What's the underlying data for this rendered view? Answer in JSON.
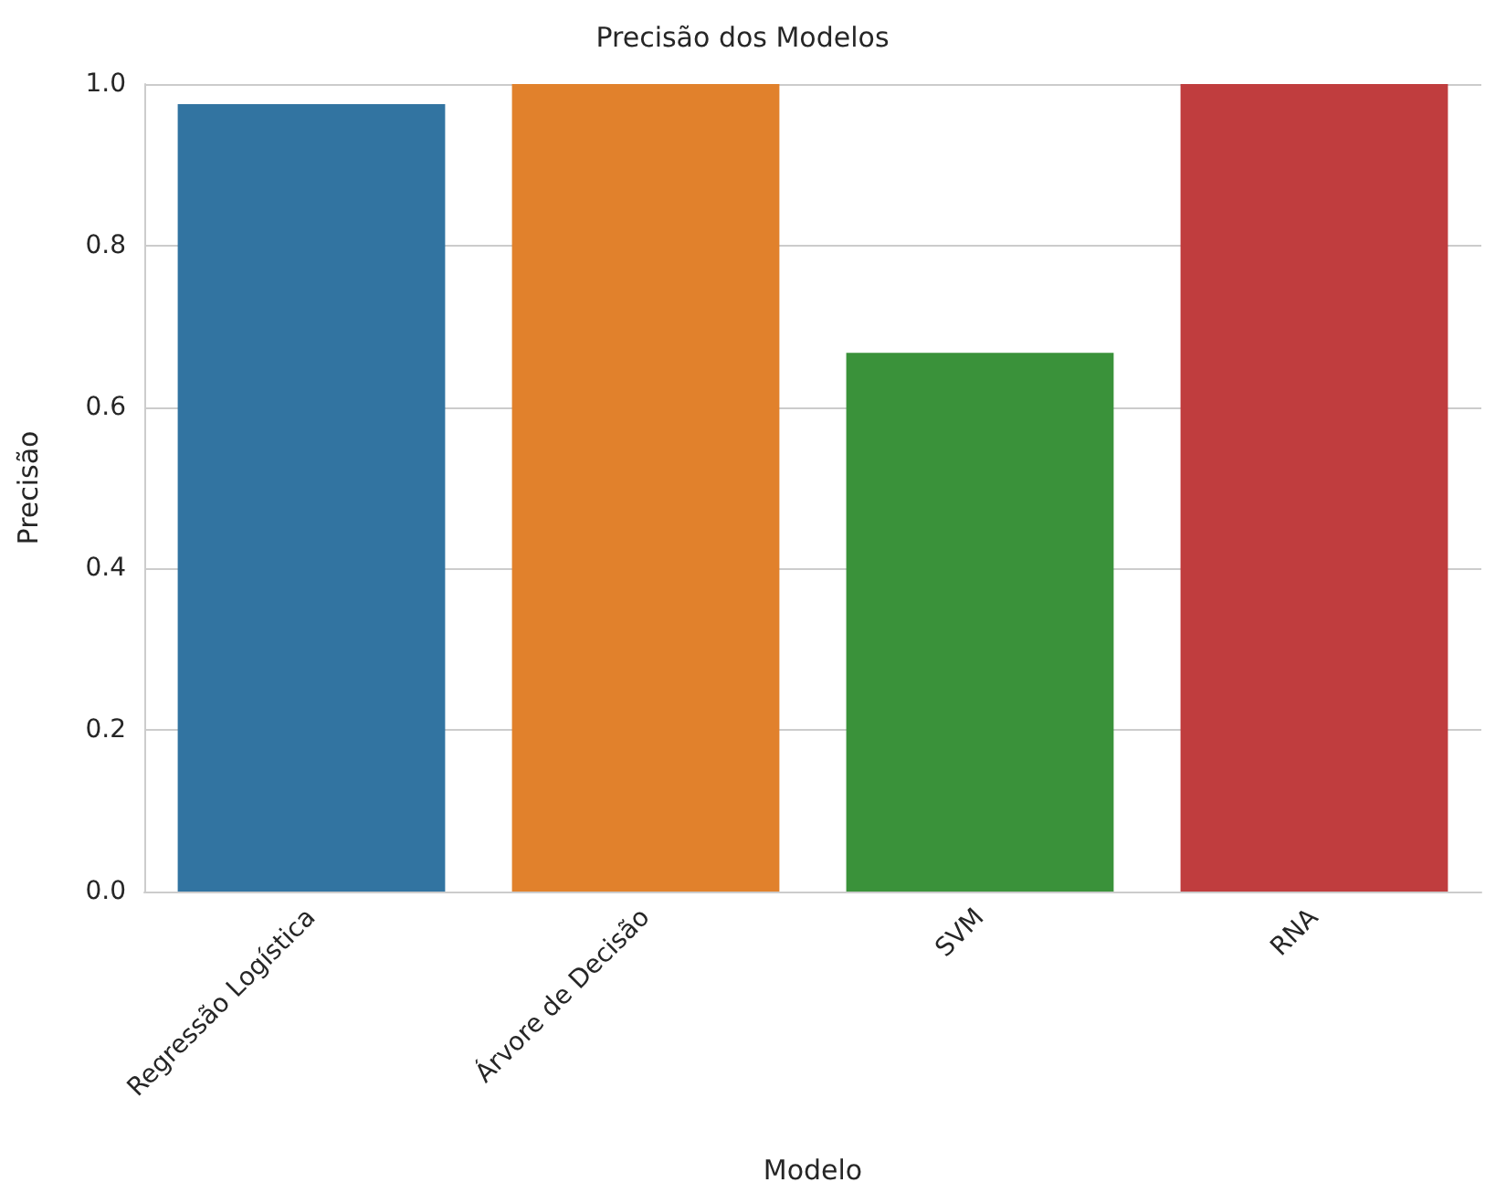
{
  "chart_data": {
    "type": "bar",
    "title": "Precisão dos Modelos",
    "xlabel": "Modelo",
    "ylabel": "Precisão",
    "categories": [
      "Regressão Logística",
      "Árvore de Decisão",
      "SVM",
      "RNA"
    ],
    "values": [
      0.975,
      1.0,
      0.667,
      1.0
    ],
    "colors": [
      "#3274a1",
      "#e1812c",
      "#3a923a",
      "#c03d3e"
    ],
    "ylim": [
      0,
      1
    ],
    "yticks": [
      {
        "value": 0,
        "label": "0.0"
      },
      0.2,
      0.4,
      0.6,
      0.8,
      {
        "value": 1,
        "label": "1.0"
      }
    ],
    "grid": "y"
  }
}
